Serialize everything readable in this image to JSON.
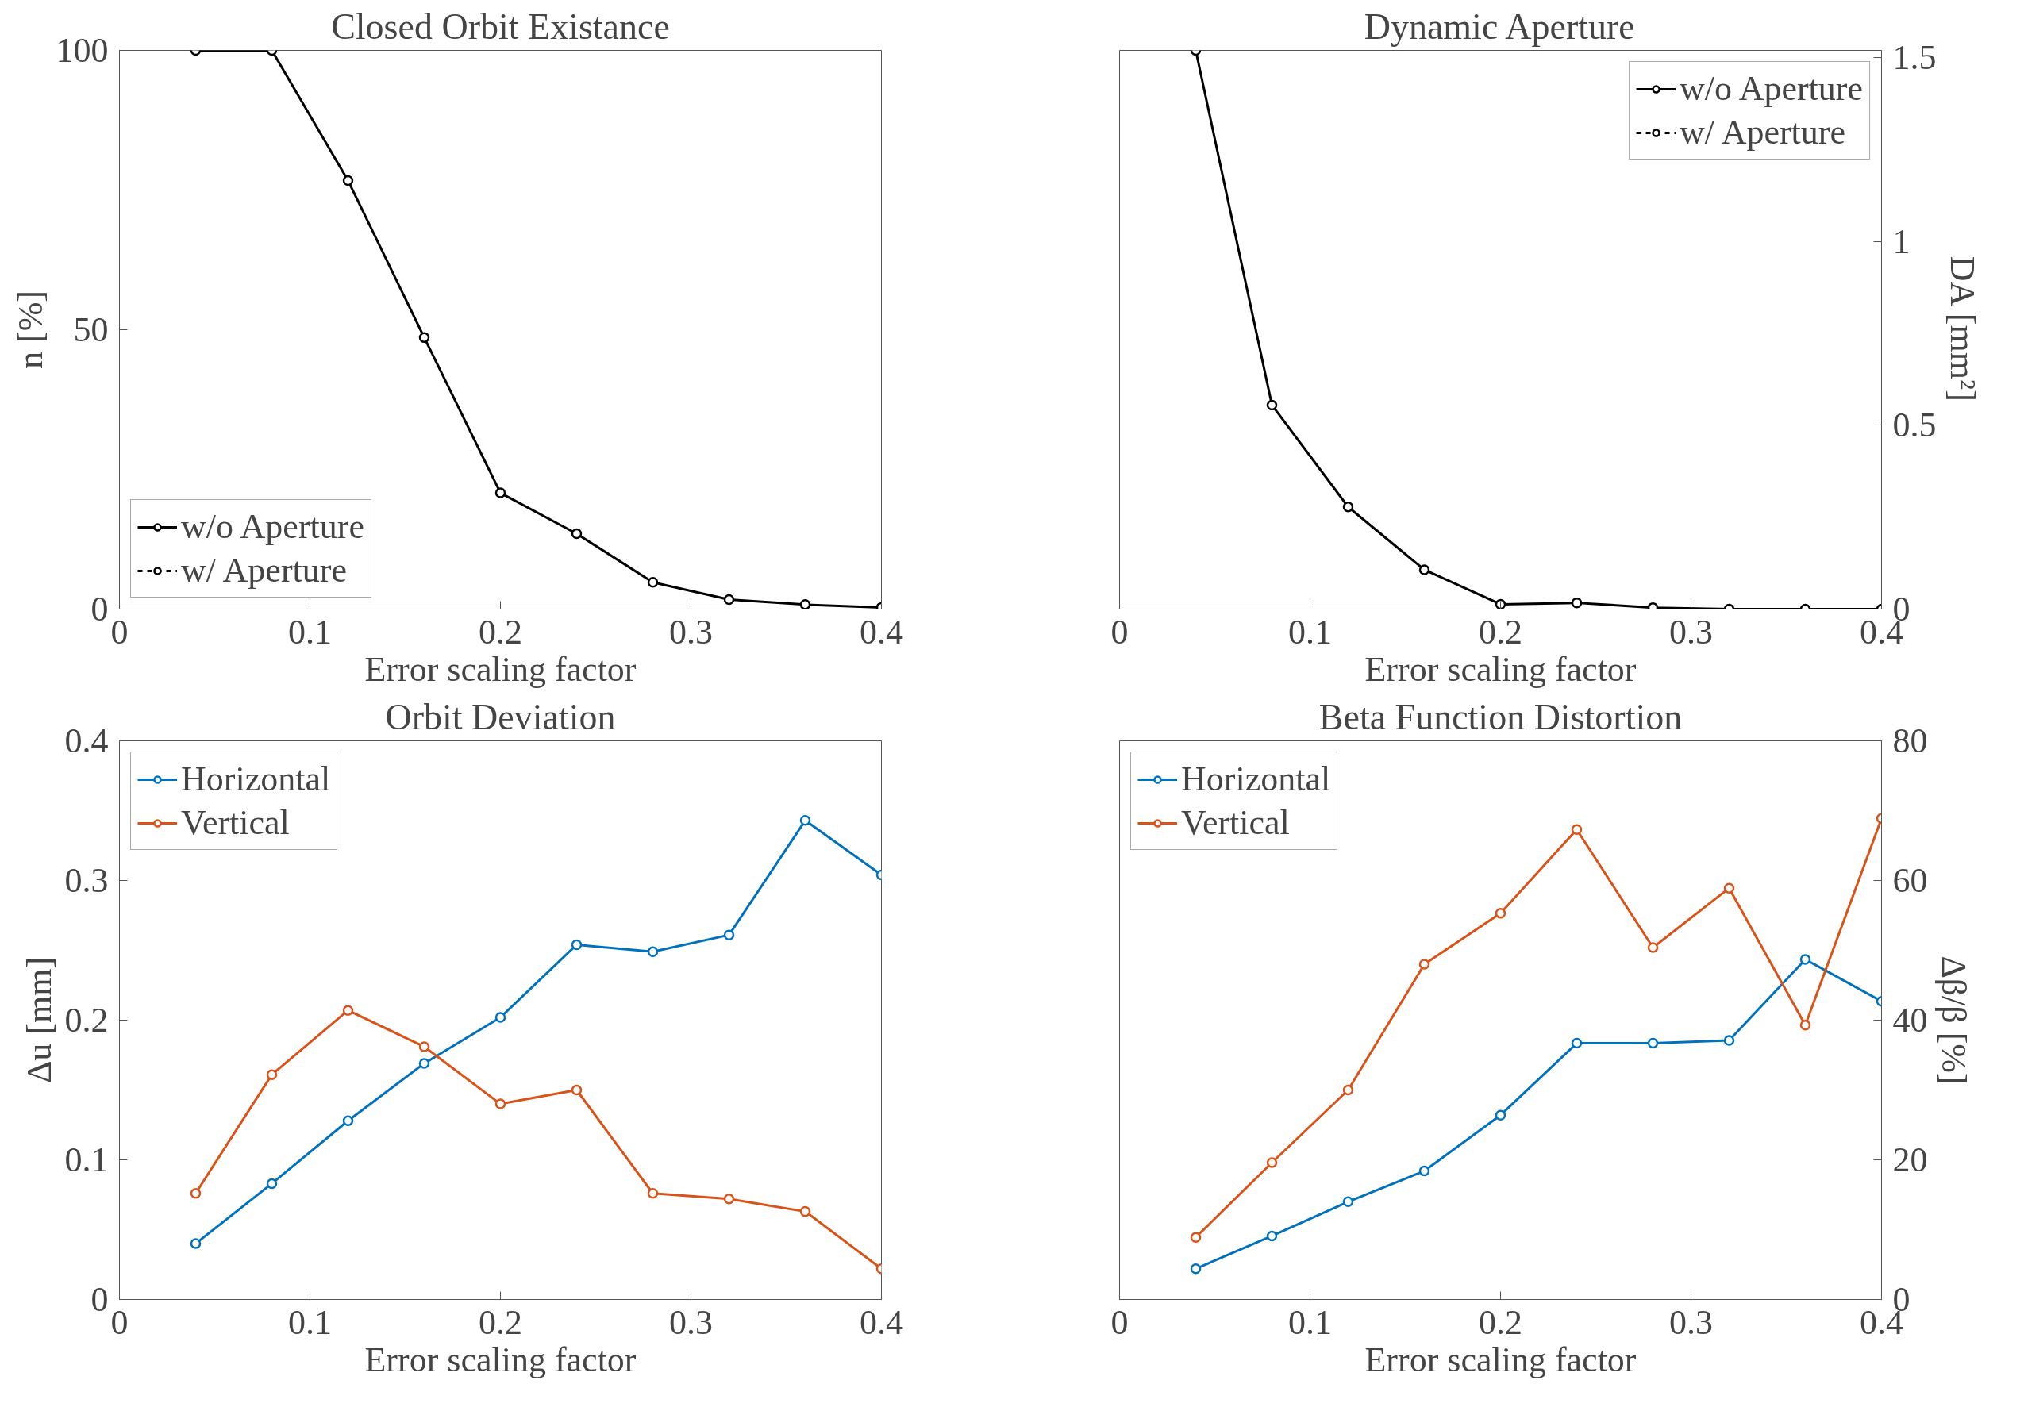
{
  "chart_data": [
    {
      "type": "line",
      "title": "Closed Orbit Existance",
      "xlabel": "Error scaling factor",
      "ylabel": "n [%]",
      "x": [
        0.04,
        0.08,
        0.12,
        0.16,
        0.2,
        0.24,
        0.28,
        0.32,
        0.36,
        0.4
      ],
      "xlim": [
        0,
        0.4
      ],
      "xticks": [
        0,
        0.1,
        0.2,
        0.3,
        0.4
      ],
      "ylim": [
        0,
        100
      ],
      "yticks": [
        0,
        50,
        100
      ],
      "grid": false,
      "legend": "bottom left",
      "marker": "circle",
      "line_style": "solid",
      "series": [
        {
          "name": "w/o Aperture",
          "color": "#000000",
          "values": [
            100,
            100,
            76.7,
            48.6,
            20.8,
            13.5,
            4.8,
            1.7,
            0.8,
            0.3
          ]
        },
        {
          "name": "w/ Aperture",
          "color": "#000000",
          "line_style": "dashed",
          "values": [
            null,
            null,
            null,
            null,
            null,
            null,
            null,
            null,
            null,
            null
          ]
        }
      ]
    },
    {
      "type": "line",
      "title": "Dynamic Aperture",
      "xlabel": "Error scaling factor",
      "y2label": "DA [mm²]",
      "x": [
        0.04,
        0.08,
        0.12,
        0.16,
        0.2,
        0.24,
        0.28,
        0.32,
        0.36,
        0.4
      ],
      "xlim": [
        0,
        0.4
      ],
      "xticks": [
        0,
        0.1,
        0.2,
        0.3,
        0.4
      ],
      "y2lim": [
        0,
        1.52
      ],
      "y2ticks": [
        0,
        0.5,
        1,
        1.5
      ],
      "grid": false,
      "legend": "top right",
      "marker": "circle",
      "line_style": "solid",
      "series": [
        {
          "name": "w/o Aperture",
          "color": "#000000",
          "axis": "y2",
          "values": [
            1.52,
            0.555,
            0.278,
            0.107,
            0.013,
            0.017,
            0.004,
            0,
            0,
            0
          ]
        },
        {
          "name": "w/ Aperture",
          "color": "#000000",
          "axis": "y2",
          "line_style": "dashed",
          "values": [
            null,
            null,
            null,
            null,
            null,
            null,
            null,
            null,
            null,
            null
          ]
        }
      ]
    },
    {
      "type": "line",
      "title": "Orbit Deviation",
      "xlabel": "Error scaling factor",
      "ylabel": "Δu [mm]",
      "x": [
        0.04,
        0.08,
        0.12,
        0.16,
        0.2,
        0.24,
        0.28,
        0.32,
        0.36,
        0.4
      ],
      "xlim": [
        0,
        0.4
      ],
      "xticks": [
        0,
        0.1,
        0.2,
        0.3,
        0.4
      ],
      "ylim": [
        0,
        0.4
      ],
      "yticks": [
        0,
        0.1,
        0.2,
        0.3,
        0.4
      ],
      "grid": false,
      "legend": "top left",
      "marker": "circle",
      "line_style": "solid",
      "series": [
        {
          "name": "Horizontal",
          "color": "#0072bd",
          "values": [
            0.04,
            0.083,
            0.128,
            0.169,
            0.202,
            0.254,
            0.249,
            0.261,
            0.343,
            0.304
          ]
        },
        {
          "name": "Vertical",
          "color": "#d95319",
          "values": [
            0.076,
            0.161,
            0.207,
            0.181,
            0.14,
            0.15,
            0.076,
            0.072,
            0.063,
            0.022
          ]
        }
      ]
    },
    {
      "type": "line",
      "title": "Beta Function Distortion",
      "xlabel": "Error scaling factor",
      "y2label": "Δβ/β [%]",
      "x": [
        0.04,
        0.08,
        0.12,
        0.16,
        0.2,
        0.24,
        0.28,
        0.32,
        0.36,
        0.4
      ],
      "xlim": [
        0,
        0.4
      ],
      "xticks": [
        0,
        0.1,
        0.2,
        0.3,
        0.4
      ],
      "y2lim": [
        0,
        80
      ],
      "y2ticks": [
        0,
        20,
        40,
        60,
        80
      ],
      "grid": false,
      "legend": "top left",
      "marker": "circle",
      "line_style": "solid",
      "series": [
        {
          "name": "Horizontal",
          "color": "#0072bd",
          "axis": "y2",
          "values": [
            4.4,
            9.1,
            14,
            18.4,
            26.4,
            36.7,
            36.7,
            37.1,
            48.7,
            42.7
          ]
        },
        {
          "name": "Vertical",
          "color": "#d95319",
          "axis": "y2",
          "values": [
            8.9,
            19.6,
            30,
            48,
            55.3,
            67.3,
            50.4,
            58.9,
            39.3,
            68.9
          ]
        }
      ]
    }
  ]
}
